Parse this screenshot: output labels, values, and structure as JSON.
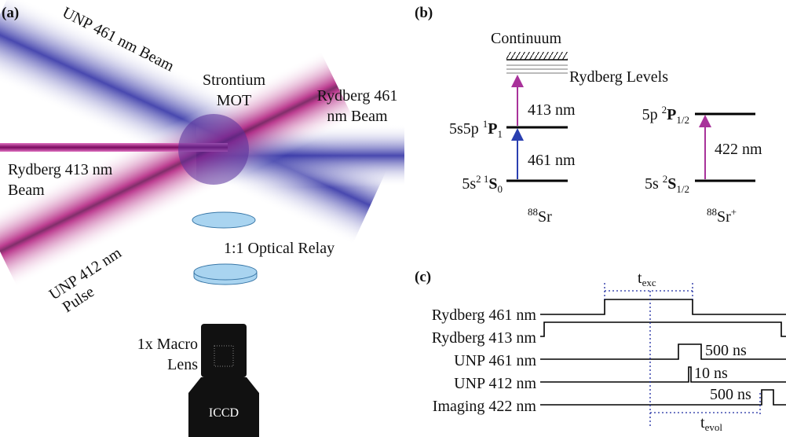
{
  "panel_a": {
    "label": "(a)",
    "unp_461_beam": "UNP 461 nm Beam",
    "strontium": "Strontium",
    "mot": "MOT",
    "rydberg_461_beam": [
      "Rydberg 461",
      "nm Beam"
    ],
    "rydberg_413_beam": [
      "Rydberg 413 nm",
      "Beam"
    ],
    "unp_412_pulse": [
      "UNP 412 nm",
      "Pulse"
    ],
    "optical_relay": "1:1 Optical Relay",
    "macro_lens": [
      "1x Macro",
      "Lens"
    ],
    "camera": "ICCD"
  },
  "panel_b": {
    "label": "(b)",
    "continuum": "Continuum",
    "rydberg_levels": "Rydberg Levels",
    "sr_levels": [
      {
        "main": "5s5p ",
        "sup": "1",
        "term": "P",
        "sub": "1"
      },
      {
        "main": "5s",
        "sup": "2 1",
        "term": "S",
        "sub": "0"
      }
    ],
    "sr_transitions": [
      "413 nm",
      "461 nm"
    ],
    "sr_species": {
      "sup": "88",
      "main": "Sr"
    },
    "ion_levels": [
      {
        "main": "5p ",
        "sup": "2",
        "term": "P",
        "sub": "1/2"
      },
      {
        "main": "5s ",
        "sup": "2",
        "term": "S",
        "sub": "1/2"
      }
    ],
    "ion_transition": "422 nm",
    "ion_species": {
      "sup": "88",
      "main": "Sr",
      "charge": "+"
    }
  },
  "panel_c": {
    "label": "(c)",
    "channels": [
      "Rydberg 461 nm",
      "Rydberg 413 nm",
      "UNP 461 nm",
      "UNP 412 nm",
      "Imaging 422 nm"
    ],
    "durations": [
      "500 ns",
      "10 ns",
      "500 ns"
    ],
    "t_exc": {
      "main": "t",
      "sub": "exc"
    },
    "t_evol": {
      "main": "t",
      "sub": "evol"
    }
  }
}
